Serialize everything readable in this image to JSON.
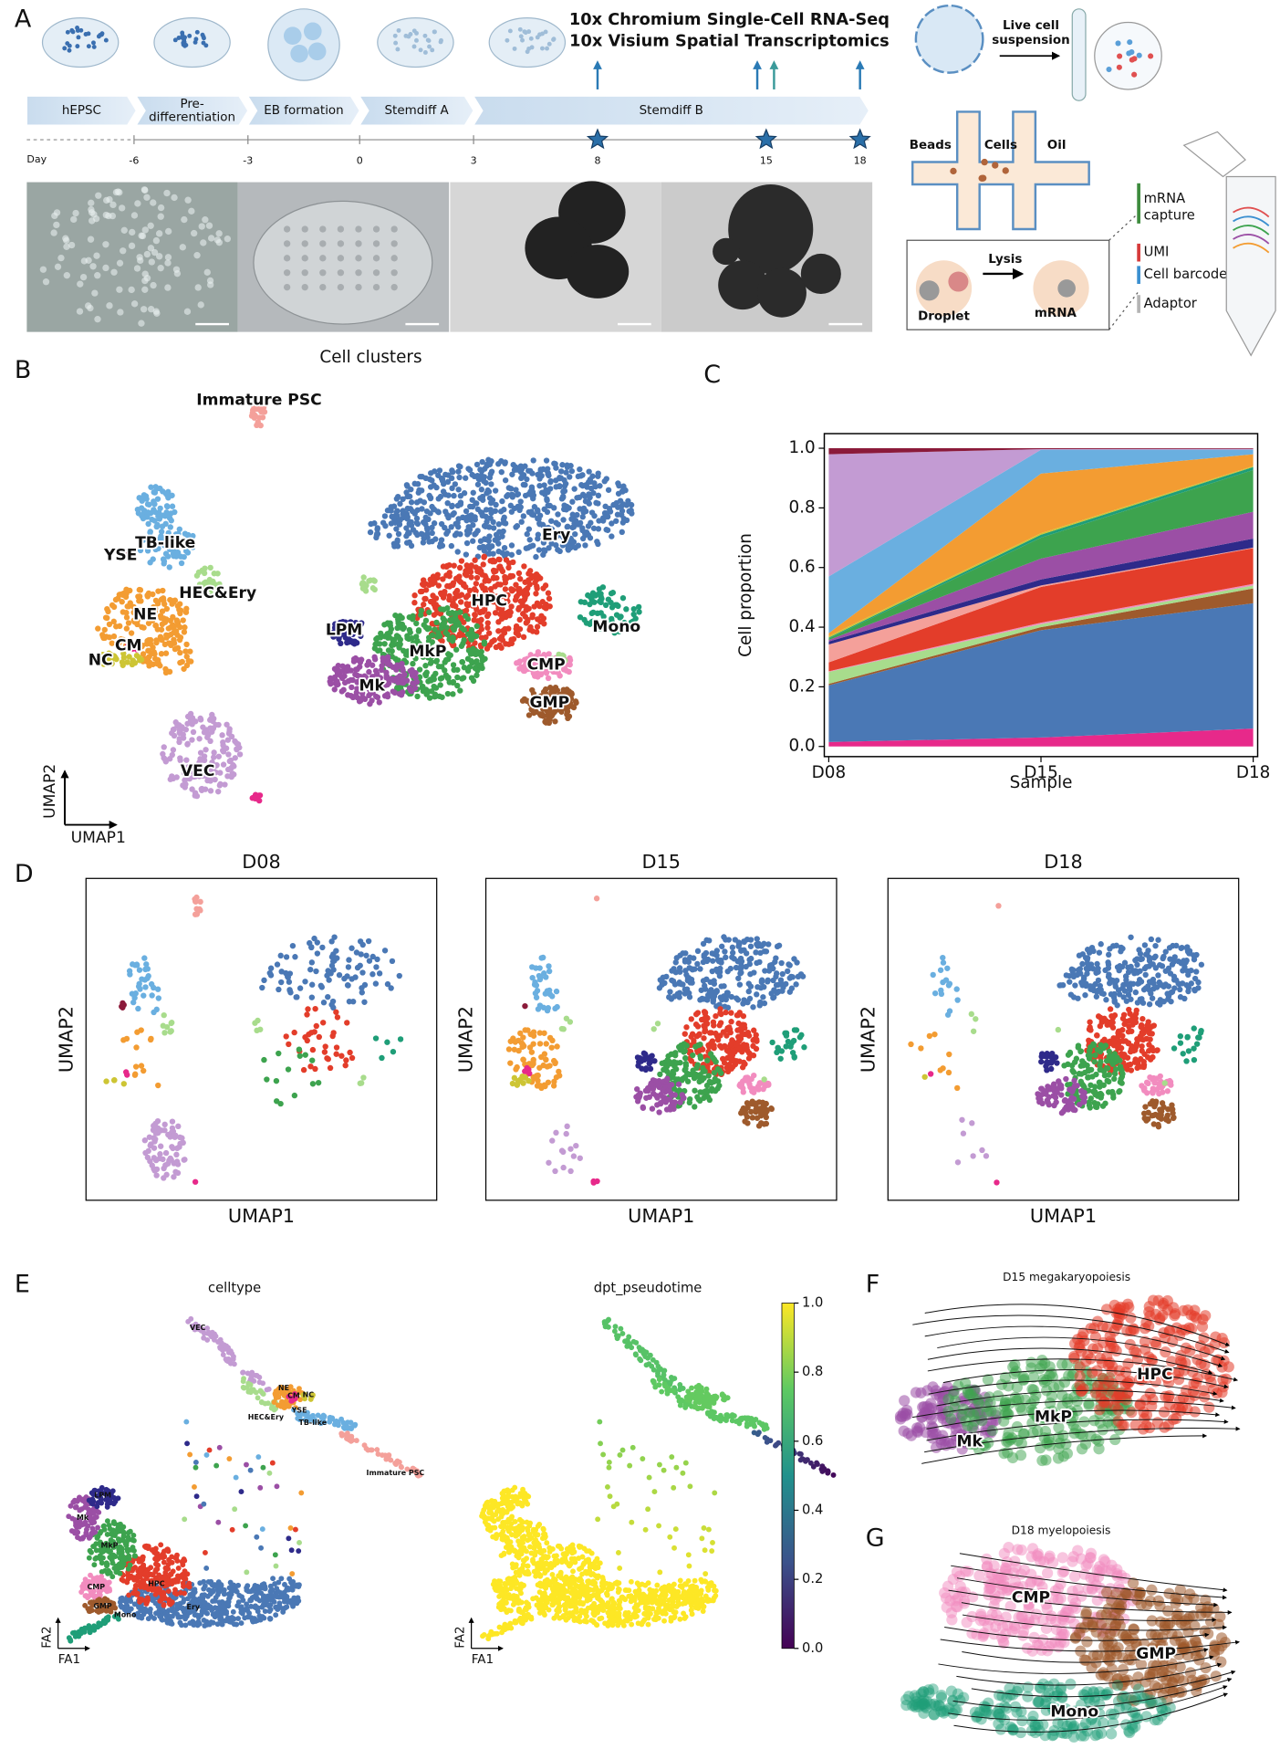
{
  "panel_a": {
    "label": "A",
    "assays": [
      "10x Chromium Single-Cell RNA-Seq",
      "10x Visium Spatial Transcriptomics"
    ],
    "stages": [
      [
        "hEPSC"
      ],
      [
        "Pre-",
        "differentiation"
      ],
      [
        "EB formation"
      ],
      [
        "Stemdiff A"
      ],
      [
        "Stemdiff B"
      ]
    ],
    "day_label": "Day",
    "day_ticks": [
      -6,
      -3,
      0,
      3,
      8,
      15,
      18
    ],
    "suspension": [
      "Live cell",
      "suspension"
    ],
    "chip": [
      "Beads",
      "Cells",
      "Oil"
    ],
    "lysis": "Lysis",
    "droplet": "Droplet",
    "mrna": "mRNA",
    "oligo": [
      {
        "text": [
          "mRNA",
          "capture"
        ],
        "color": "#3d8b3d"
      },
      {
        "text": [
          "UMI"
        ],
        "color": "#d63a3a"
      },
      {
        "text": [
          "Cell barcode"
        ],
        "color": "#3a8fd0"
      },
      {
        "text": [
          "Adaptor"
        ],
        "color": "#b4b4b4"
      }
    ]
  },
  "panel_b": {
    "label": "B",
    "title": "Cell clusters",
    "x_label": "UMAP1",
    "y_label": "UMAP2",
    "clusters": [
      {
        "name": "Immature PSC",
        "color": "#f4a09a"
      },
      {
        "name": "TB-like",
        "color": "#6aafe0"
      },
      {
        "name": "YSE",
        "color": "#8b1a3a"
      },
      {
        "name": "HEC&Ery",
        "color": "#a8dc8c"
      },
      {
        "name": "NE",
        "color": "#f39c32"
      },
      {
        "name": "CM",
        "color": "#e7298a"
      },
      {
        "name": "NC",
        "color": "#cdc534"
      },
      {
        "name": "VEC",
        "color": "#c39bd3"
      },
      {
        "name": "Ery",
        "color": "#4a78b5"
      },
      {
        "name": "HPC",
        "color": "#e33d2a"
      },
      {
        "name": "Mono",
        "color": "#1f9e78"
      },
      {
        "name": "LPM",
        "color": "#2e2a8a"
      },
      {
        "name": "MkP",
        "color": "#3da34e"
      },
      {
        "name": "Mk",
        "color": "#9b4fa5"
      },
      {
        "name": "CMP",
        "color": "#f28cbf"
      },
      {
        "name": "GMP",
        "color": "#9e5a2c"
      }
    ]
  },
  "chart_data": {
    "type": "area",
    "label": "C",
    "x_label": "Sample",
    "y_label": "Cell proportion",
    "categories": [
      "D08",
      "D15",
      "D18"
    ],
    "ylim": [
      -0.034,
      1.049
    ],
    "yticks": [
      {
        "value": 0,
        "label": "0.0"
      },
      {
        "value": 0.2,
        "label": "0.2"
      },
      {
        "value": 0.4,
        "label": "0.4"
      },
      {
        "value": 0.6,
        "label": "0.6"
      },
      {
        "value": 0.8,
        "label": "0.8"
      },
      {
        "value": 1,
        "label": "1.0"
      }
    ],
    "series": [
      {
        "color": "#e7298a",
        "values": [
          0.015,
          0.03,
          0.06
        ]
      },
      {
        "color": "#4a78b5",
        "values": [
          0.19,
          0.36,
          0.42
        ]
      },
      {
        "color": "#9e5a2c",
        "values": [
          0.005,
          0.01,
          0.05
        ]
      },
      {
        "color": "#a8dc8c",
        "values": [
          0.04,
          0.01,
          0.01
        ]
      },
      {
        "color": "#f28cbf",
        "values": [
          0.002,
          0.005,
          0.005
        ]
      },
      {
        "color": "#e33d2a",
        "values": [
          0.03,
          0.12,
          0.12
        ]
      },
      {
        "color": "#f4a09a",
        "values": [
          0.06,
          0.005,
          0.002
        ]
      },
      {
        "color": "#2e2a8a",
        "values": [
          0.01,
          0.02,
          0.03
        ]
      },
      {
        "color": "#9b4fa5",
        "values": [
          0.005,
          0.07,
          0.09
        ]
      },
      {
        "color": "#3da34e",
        "values": [
          0.005,
          0.07,
          0.14
        ]
      },
      {
        "color": "#1f9e78",
        "values": [
          0.003,
          0.01,
          0.01
        ]
      },
      {
        "color": "#cdc534",
        "values": [
          0.005,
          0.005,
          0.003
        ]
      },
      {
        "color": "#f39c32",
        "values": [
          0.01,
          0.2,
          0.04
        ]
      },
      {
        "color": "#6aafe0",
        "values": [
          0.19,
          0.08,
          0.015
        ]
      },
      {
        "color": "#c39bd3",
        "values": [
          0.41,
          0.002,
          0.003
        ]
      },
      {
        "color": "#8b1a3a",
        "values": [
          0.02,
          0.003,
          0.002
        ]
      }
    ]
  },
  "panel_d": {
    "label": "D",
    "x_label": "UMAP1",
    "y_label": "UMAP2"
  },
  "panel_e": {
    "label": "E",
    "titles": [
      "celltype",
      "dpt_pseudotime"
    ],
    "x_label": "FA1",
    "y_label": "FA2",
    "clim": [
      0,
      1
    ],
    "colorbar_ticks": [
      {
        "value": 0,
        "label": "0.0"
      },
      {
        "value": 0.2,
        "label": "0.2"
      },
      {
        "value": 0.4,
        "label": "0.4"
      },
      {
        "value": 0.6,
        "label": "0.6"
      },
      {
        "value": 0.8,
        "label": "0.8"
      },
      {
        "value": 1,
        "label": "1.0"
      }
    ]
  },
  "panel_f": {
    "label": "F",
    "title": "D15 megakaryopoiesis"
  },
  "panel_g": {
    "label": "G",
    "title": "D18 myelopoiesis"
  }
}
